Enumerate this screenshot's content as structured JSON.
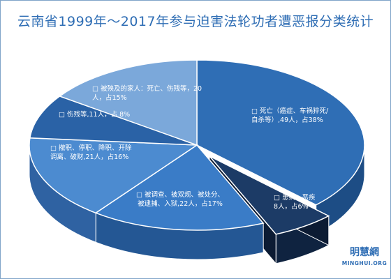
{
  "chart_data": {
    "type": "pie",
    "title": "云南省1999年～2017年参与迫害法轮功者遭恶报分类统计",
    "slices": [
      {
        "label_lines": [
          "□ 死亡（癌症、车祸猝死/",
          "自杀等）,49人，占38%"
        ],
        "value": 49,
        "percent": 38,
        "color": "#2f6eb5",
        "side_color": "#1d4d85",
        "exploded": false
      },
      {
        "label_lines": [
          "□ 患病、恶疾",
          "8人，占6%"
        ],
        "value": 8,
        "percent": 6,
        "color": "#1c3b66",
        "side_color": "#0f2340",
        "exploded": true
      },
      {
        "label_lines": [
          "□ 被调查、被双规、被处分、",
          "被逮捕、入狱,22人，占17%"
        ],
        "value": 22,
        "percent": 17,
        "color": "#3a7cc7",
        "side_color": "#245794",
        "exploded": false
      },
      {
        "label_lines": [
          "□ 撤职、停职、降职、开除",
          "调离、破财,21人，占16%"
        ],
        "value": 21,
        "percent": 16,
        "color": "#4c8bd0",
        "side_color": "#2f62a2",
        "exploded": false
      },
      {
        "label_lines": [
          "□ 伤残等,11人，占 8%"
        ],
        "value": 11,
        "percent": 8,
        "color": "#2a62a6",
        "side_color": "#1a457a",
        "exploded": false
      },
      {
        "label_lines": [
          "□ 被殃及的家人：死亡、伤残等，20",
          "人，占15%"
        ],
        "value": 20,
        "percent": 15,
        "color": "#7ba8da",
        "side_color": "#4f7fb8",
        "exploded": false
      }
    ]
  },
  "watermark": {
    "cn": "明慧網",
    "en": "MINGHUI.ORG"
  }
}
